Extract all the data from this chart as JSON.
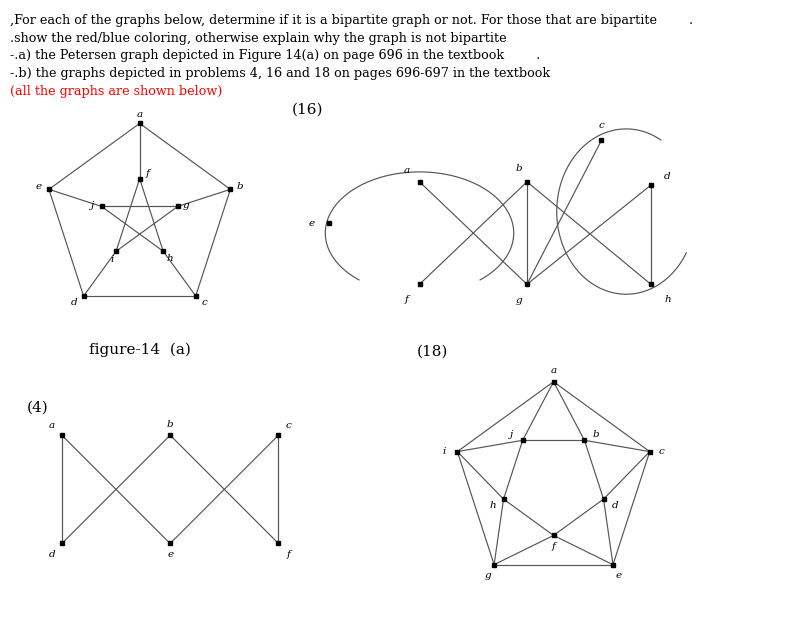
{
  "title_lines": [
    ",For each of the graphs below, determine if it is a bipartite graph or not. For those that are bipartite        .",
    ".show the red/blue coloring, otherwise explain why the graph is not bipartite",
    "-.a) the Petersen graph depicted in Figure 14(a) on page 696 in the textbook        .",
    "-.b) the graphs depicted in problems 4, 16 and 18 on pages 696-697 in the textbook",
    "(all the graphs are shown below)"
  ],
  "title_colors": [
    "black",
    "black",
    "black",
    "black",
    "red"
  ],
  "fig14a_label": "figure-14  (a)",
  "label4": "(4)",
  "label16": "(16)",
  "label18": "(18)"
}
